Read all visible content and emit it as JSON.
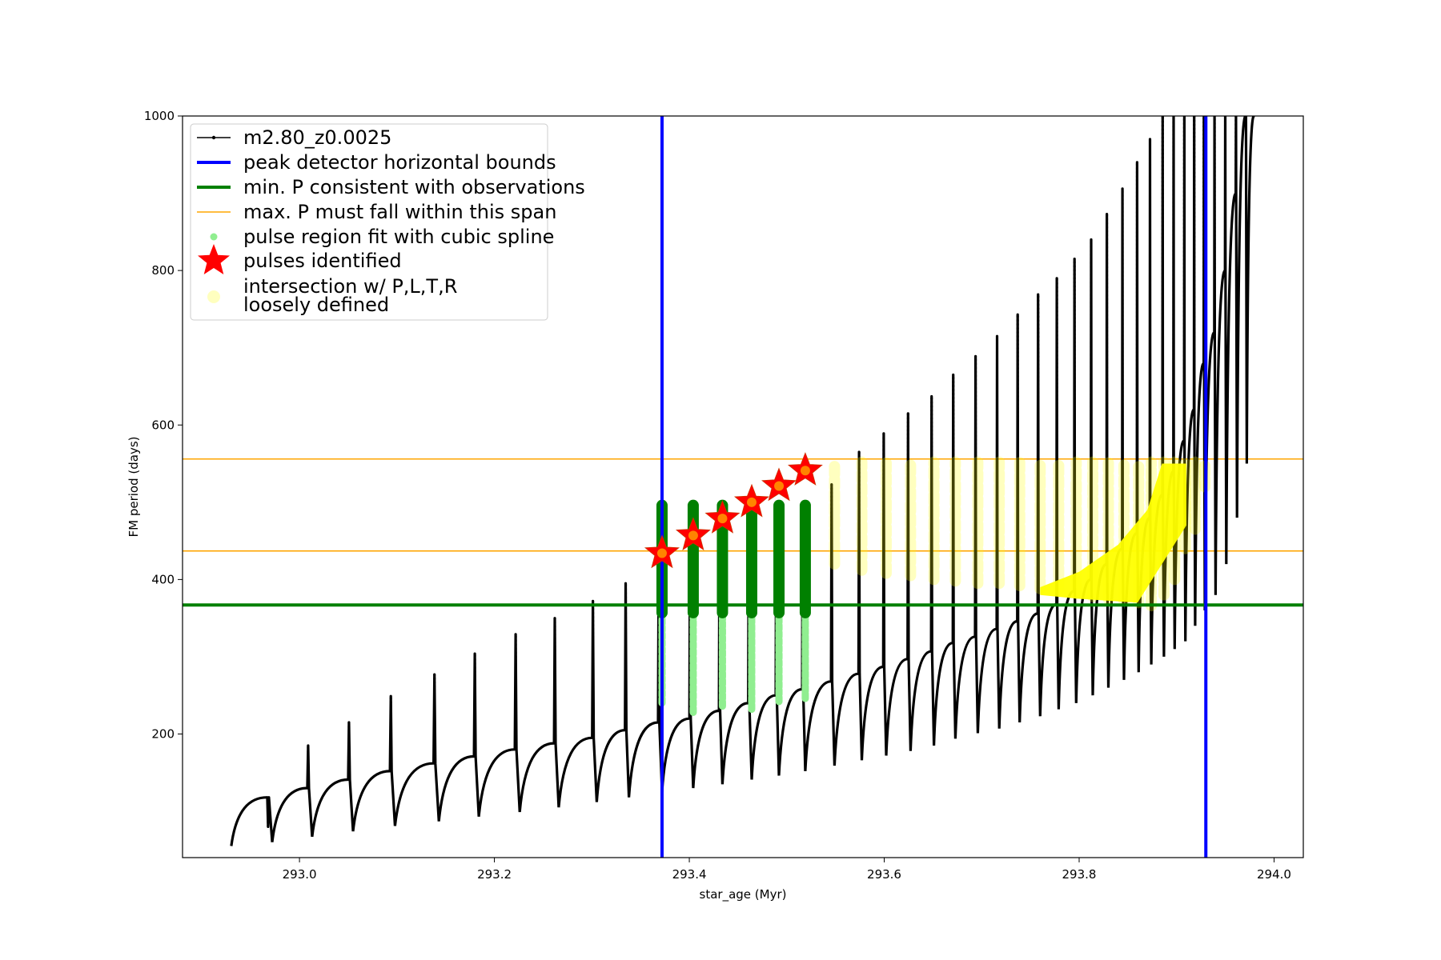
{
  "chart_data": {
    "type": "line",
    "title": "",
    "xlabel": "star_age (Myr)",
    "ylabel": "FM period (days)",
    "xlim": [
      292.88,
      294.03
    ],
    "ylim": [
      40,
      1000
    ],
    "xticks": [
      293.0,
      293.2,
      293.4,
      293.6,
      293.8,
      294.0
    ],
    "xtick_labels": [
      "293.0",
      "293.2",
      "293.4",
      "293.6",
      "293.8",
      "294.0"
    ],
    "yticks": [
      200,
      400,
      600,
      800,
      1000
    ],
    "ytick_labels": [
      "200",
      "400",
      "600",
      "800",
      "1000"
    ],
    "grid": false,
    "legend_position": "top-left",
    "colors": {
      "track": "#000000",
      "bounds": "#0000ff",
      "min_period": "#008000",
      "max_period_span": "#ffa500",
      "spline": "#90ee90",
      "spline_dark": "#008000",
      "pulses": "#ff0000",
      "intersection": "#ffff00"
    },
    "legend": [
      {
        "label": "m2.80_z0.0025",
        "marker": "line-dot",
        "color": "#000000"
      },
      {
        "label": "peak detector horizontal bounds",
        "marker": "line-thick",
        "color": "#0000ff"
      },
      {
        "label": "min. P consistent with observations",
        "marker": "line-thick",
        "color": "#008000"
      },
      {
        "label": "max. P must fall within this span",
        "marker": "line-thin",
        "color": "#ffa500"
      },
      {
        "label": "pulse region fit with cubic spline",
        "marker": "dot",
        "color": "#90ee90"
      },
      {
        "label": "pulses identified",
        "marker": "star",
        "color": "#ff0000"
      },
      {
        "label": "intersection w/ P,L,T,R",
        "label2": "loosely defined",
        "marker": "circle-faded",
        "color": "#ffff00"
      }
    ],
    "peak_detector_bounds": [
      293.372,
      293.93
    ],
    "min_period": 367,
    "max_period_span": [
      437,
      556
    ],
    "pulses_identified": [
      {
        "x": 293.372,
        "y": 434
      },
      {
        "x": 293.404,
        "y": 457
      },
      {
        "x": 293.434,
        "y": 479
      },
      {
        "x": 293.464,
        "y": 500
      },
      {
        "x": 293.492,
        "y": 521
      },
      {
        "x": 293.519,
        "y": 541
      }
    ],
    "track": {
      "name": "m2.80_z0.0025",
      "series": {
        "x": [
          292.93,
          292.972,
          293.013,
          293.055,
          293.098,
          293.143,
          293.184,
          293.226,
          293.266,
          293.305,
          293.338,
          293.372,
          293.404,
          293.434,
          293.464,
          293.492,
          293.519,
          293.549,
          293.577,
          293.602,
          293.627,
          293.651,
          293.673,
          293.696,
          293.718,
          293.739,
          293.76,
          293.779,
          293.797,
          293.814,
          293.83,
          293.846,
          293.861,
          293.874,
          293.887,
          293.898,
          293.909,
          293.919,
          293.929,
          293.94,
          293.951,
          293.962,
          293.972
        ],
        "low": [
          55,
          60,
          67,
          74,
          81,
          87,
          93,
          99,
          105,
          112,
          118,
          125,
          130,
          135,
          141,
          146,
          152,
          159,
          166,
          172,
          178,
          185,
          194,
          201,
          207,
          215,
          223,
          232,
          240,
          250,
          260,
          270,
          280,
          290,
          300,
          310,
          320,
          340,
          360,
          380,
          420,
          480,
          550
        ],
        "plateau": [
          118,
          130,
          141,
          152,
          162,
          171,
          180,
          188,
          195,
          205,
          215,
          220,
          230,
          240,
          250,
          258,
          268,
          278,
          287,
          297,
          307,
          318,
          326,
          336,
          346,
          356,
          368,
          385,
          400,
          420,
          440,
          460,
          480,
          510,
          540,
          580,
          620,
          680,
          720,
          800,
          900,
          1000,
          1000
        ],
        "spike": [
          80,
          185,
          215,
          249,
          277,
          304,
          329,
          350,
          372,
          395,
          416,
          480,
          470,
          475,
          486,
          500,
          523,
          565,
          589,
          615,
          637,
          665,
          689,
          715,
          743,
          769,
          790,
          815,
          840,
          873,
          906,
          940,
          970,
          1000,
          1000,
          1000,
          1000,
          1000,
          1000,
          1000,
          1000,
          1000,
          1000
        ]
      }
    },
    "spline_regions": [
      {
        "x": 293.372,
        "dark": [
          357,
          496
        ],
        "light": [
          240,
          357
        ]
      },
      {
        "x": 293.404,
        "dark": [
          357,
          496
        ],
        "light": [
          228,
          357
        ]
      },
      {
        "x": 293.434,
        "dark": [
          357,
          496
        ],
        "light": [
          236,
          357
        ]
      },
      {
        "x": 293.464,
        "dark": [
          357,
          496
        ],
        "light": [
          232,
          357
        ]
      },
      {
        "x": 293.492,
        "dark": [
          357,
          496
        ],
        "light": [
          242,
          357
        ]
      },
      {
        "x": 293.519,
        "dark": [
          357,
          496
        ],
        "light": [
          246,
          357
        ]
      }
    ],
    "intersection": {
      "columns_x": [
        293.549,
        293.577,
        293.602,
        293.627,
        293.651,
        293.673,
        293.696,
        293.718,
        293.739,
        293.76,
        293.779,
        293.797,
        293.814,
        293.83,
        293.846,
        293.861,
        293.874,
        293.887,
        293.898,
        293.909,
        293.919,
        293.929
      ],
      "low": [
        420,
        412,
        408,
        405,
        400,
        398,
        395,
        395,
        392,
        388,
        388,
        382,
        378,
        375,
        372,
        370,
        366,
        380,
        400,
        440,
        465,
        520
      ],
      "high": [
        552,
        552,
        552,
        552,
        552,
        552,
        552,
        552,
        552,
        552,
        552,
        552,
        552,
        552,
        552,
        552,
        552,
        552,
        552,
        552,
        552,
        552
      ],
      "dense_region": [
        {
          "x": 293.76,
          "y": 390
        },
        {
          "x": 293.8,
          "y": 410
        },
        {
          "x": 293.84,
          "y": 445
        },
        {
          "x": 293.87,
          "y": 490
        },
        {
          "x": 293.885,
          "y": 550
        },
        {
          "x": 293.91,
          "y": 550
        },
        {
          "x": 293.91,
          "y": 470
        },
        {
          "x": 293.86,
          "y": 370
        },
        {
          "x": 293.8,
          "y": 375
        },
        {
          "x": 293.76,
          "y": 380
        }
      ]
    }
  }
}
